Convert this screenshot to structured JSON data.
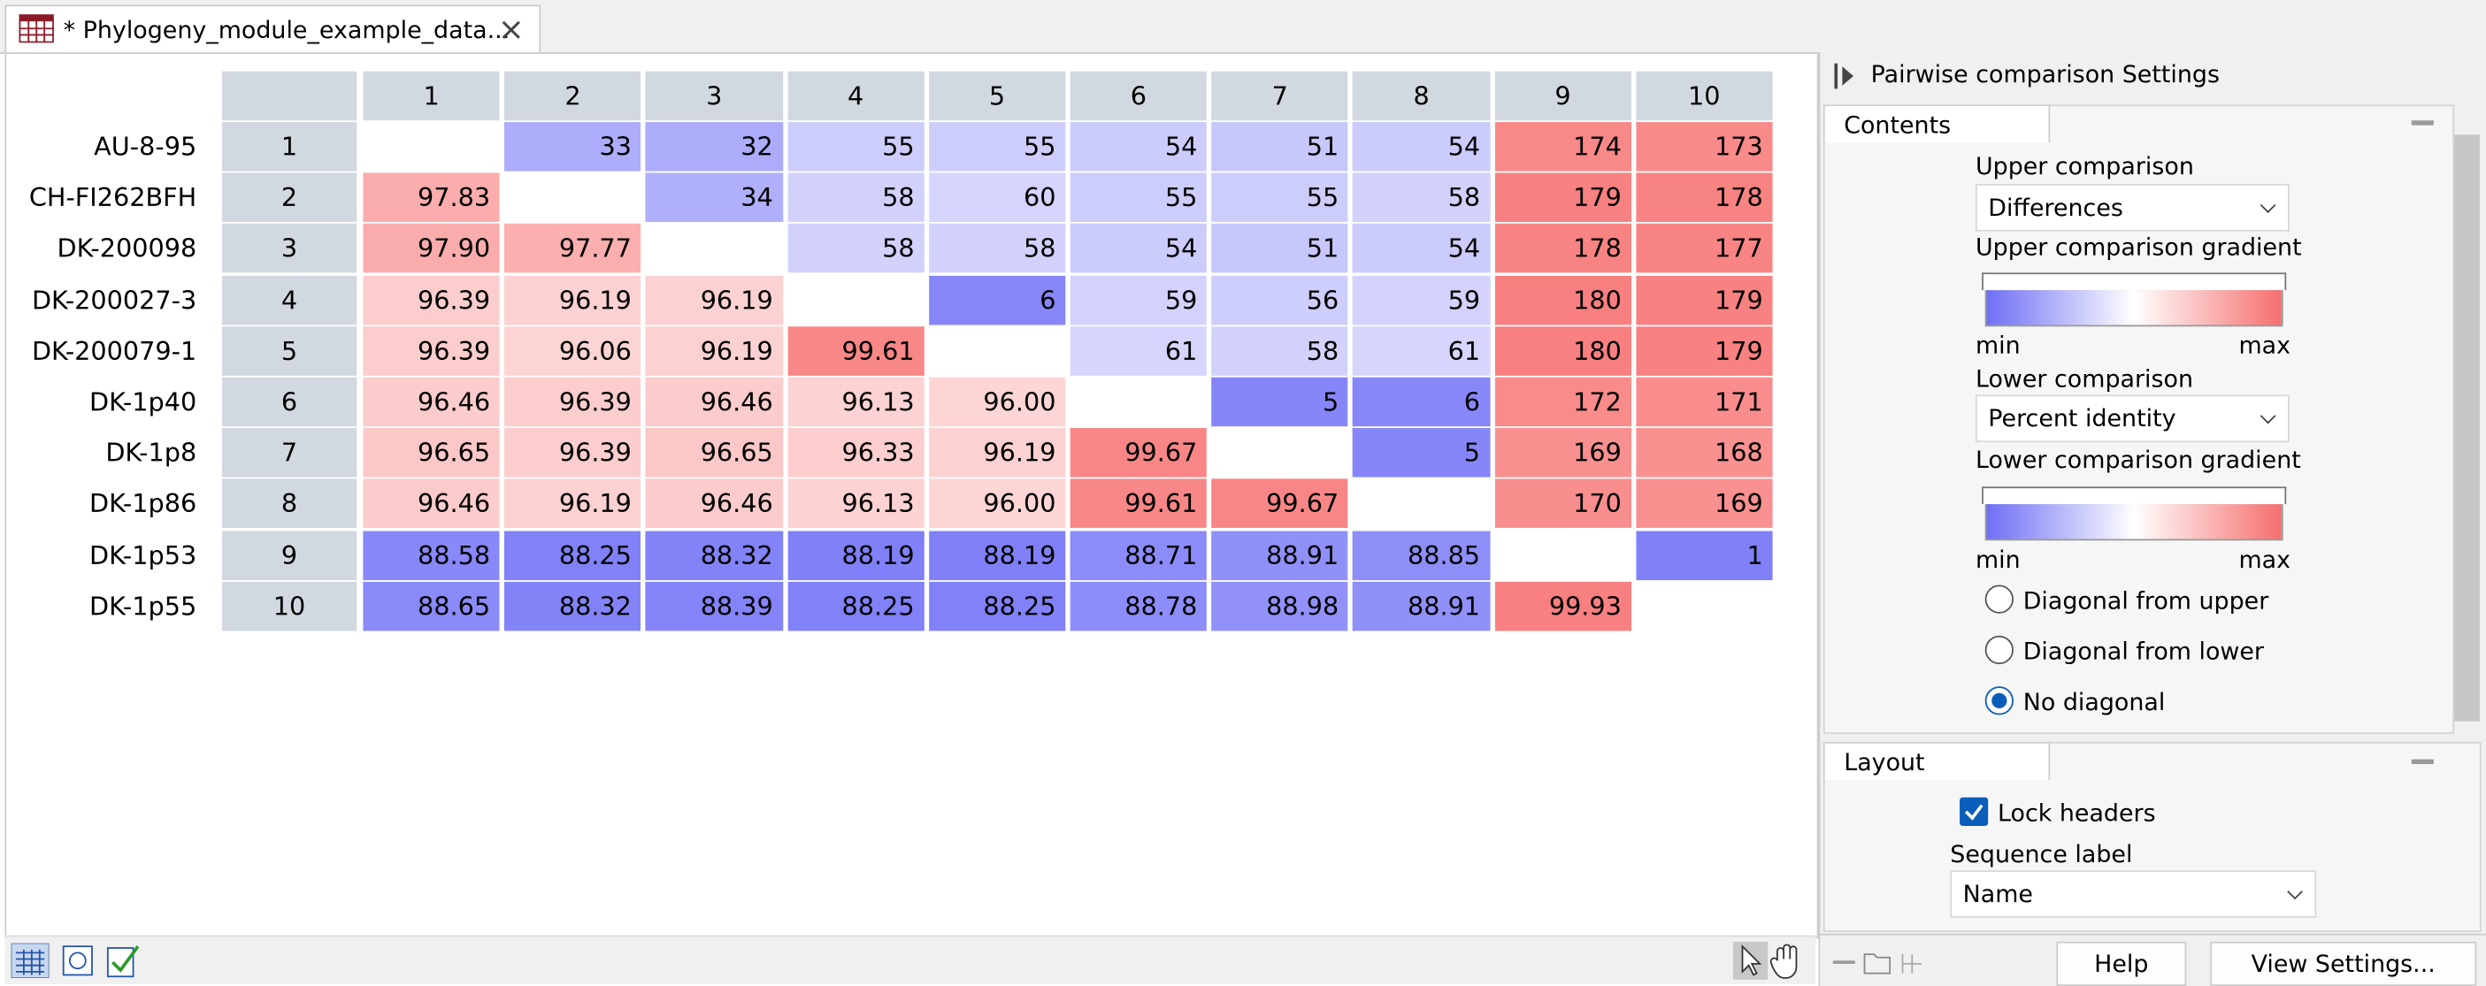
{
  "tab": {
    "title": "* Phylogeny_module_example_data..."
  },
  "table": {
    "columns": [
      "1",
      "2",
      "3",
      "4",
      "5",
      "6",
      "7",
      "8",
      "9",
      "10"
    ],
    "rows": [
      {
        "name": "AU-8-95",
        "index": "1",
        "cells": [
          null,
          "33",
          "32",
          "55",
          "55",
          "54",
          "51",
          "54",
          "174",
          "173"
        ]
      },
      {
        "name": "CH-FI262BFH",
        "index": "2",
        "cells": [
          "97.83",
          null,
          "34",
          "58",
          "60",
          "55",
          "55",
          "58",
          "179",
          "178"
        ]
      },
      {
        "name": "DK-200098",
        "index": "3",
        "cells": [
          "97.90",
          "97.77",
          null,
          "58",
          "58",
          "54",
          "51",
          "54",
          "178",
          "177"
        ]
      },
      {
        "name": "DK-200027-3",
        "index": "4",
        "cells": [
          "96.39",
          "96.19",
          "96.19",
          null,
          "6",
          "59",
          "56",
          "59",
          "180",
          "179"
        ]
      },
      {
        "name": "DK-200079-1",
        "index": "5",
        "cells": [
          "96.39",
          "96.06",
          "96.19",
          "99.61",
          null,
          "61",
          "58",
          "61",
          "180",
          "179"
        ]
      },
      {
        "name": "DK-1p40",
        "index": "6",
        "cells": [
          "96.46",
          "96.39",
          "96.46",
          "96.13",
          "96.00",
          null,
          "5",
          "6",
          "172",
          "171"
        ]
      },
      {
        "name": "DK-1p8",
        "index": "7",
        "cells": [
          "96.65",
          "96.39",
          "96.65",
          "96.33",
          "96.19",
          "99.67",
          null,
          "5",
          "169",
          "168"
        ]
      },
      {
        "name": "DK-1p86",
        "index": "8",
        "cells": [
          "96.46",
          "96.19",
          "96.46",
          "96.13",
          "96.00",
          "99.61",
          "99.67",
          null,
          "170",
          "169"
        ]
      },
      {
        "name": "DK-1p53",
        "index": "9",
        "cells": [
          "88.58",
          "88.25",
          "88.32",
          "88.19",
          "88.19",
          "88.71",
          "88.91",
          "88.85",
          null,
          "1"
        ]
      },
      {
        "name": "DK-1p55",
        "index": "10",
        "cells": [
          "88.65",
          "88.32",
          "88.39",
          "88.25",
          "88.25",
          "88.78",
          "88.98",
          "88.91",
          "99.93",
          null
        ]
      }
    ]
  },
  "settings": {
    "title": "Pairwise comparison Settings",
    "contents": "Contents",
    "upper_label": "Upper comparison",
    "upper_value": "Differences",
    "upper_gradient": "Upper comparison gradient",
    "upper_min": "min",
    "upper_max": "max",
    "lower_label": "Lower comparison",
    "lower_value": "Percent identity",
    "lower_gradient": "Lower comparison gradient",
    "lower_min": "min",
    "lower_max": "max",
    "diag_upper": "Diagonal from upper",
    "diag_lower": "Diagonal from lower",
    "no_diag": "No diagonal",
    "layout": "Layout",
    "lock_headers": "Lock headers",
    "sequence_label": "Sequence label",
    "sequence_value": "Name",
    "help": "Help",
    "view_settings": "View Settings..."
  }
}
